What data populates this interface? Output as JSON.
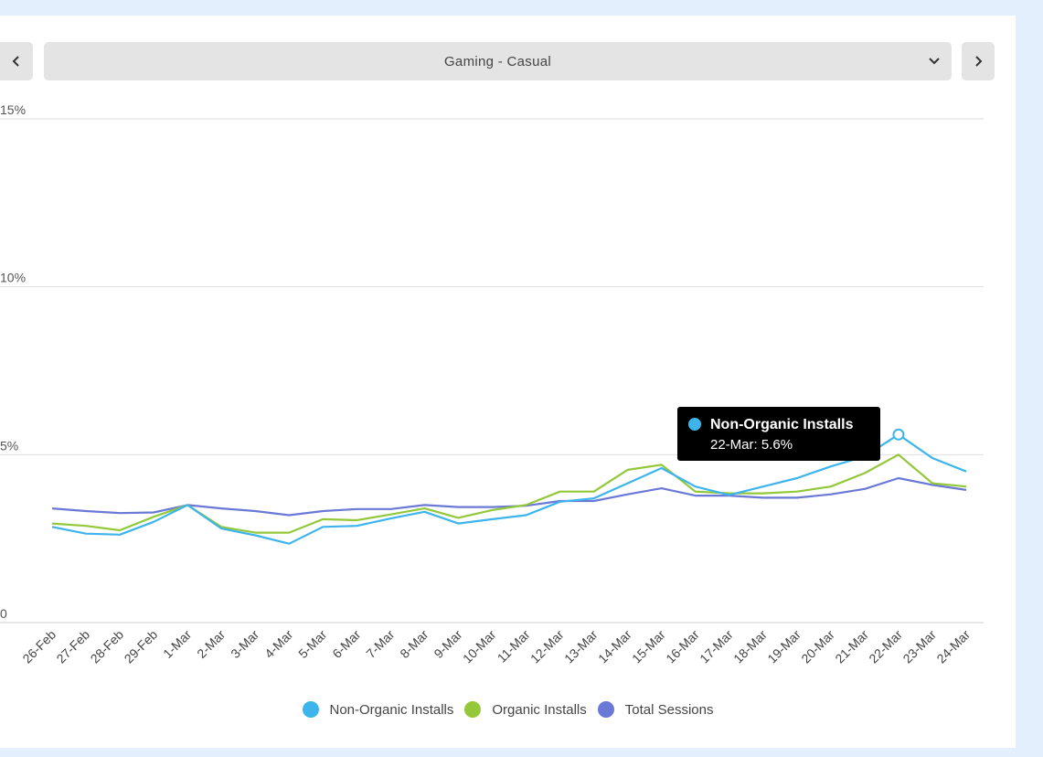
{
  "selector": {
    "label": "Gaming - Casual"
  },
  "colors": {
    "non_organic": "#3db4ec",
    "organic": "#93c83a",
    "sessions": "#6a78d6",
    "grid": "#dedede"
  },
  "chart_data": {
    "type": "line",
    "x": [
      "26-Feb",
      "27-Feb",
      "28-Feb",
      "29-Feb",
      "1-Mar",
      "2-Mar",
      "3-Mar",
      "4-Mar",
      "5-Mar",
      "6-Mar",
      "7-Mar",
      "8-Mar",
      "9-Mar",
      "10-Mar",
      "11-Mar",
      "12-Mar",
      "13-Mar",
      "14-Mar",
      "15-Mar",
      "16-Mar",
      "17-Mar",
      "18-Mar",
      "19-Mar",
      "20-Mar",
      "21-Mar",
      "22-Mar",
      "23-Mar",
      "24-Mar"
    ],
    "y_ticks": [
      0,
      5,
      10,
      15
    ],
    "y_tick_labels": [
      "0",
      "5%",
      "10%",
      "15%"
    ],
    "ylim": [
      0,
      15
    ],
    "grid": true,
    "legend_position": "bottom-center",
    "series": [
      {
        "name": "Non-Organic Installs",
        "color": "#3db4ec",
        "values": [
          2.85,
          2.65,
          2.62,
          3.0,
          3.5,
          2.8,
          2.6,
          2.35,
          2.85,
          2.88,
          3.1,
          3.3,
          2.95,
          3.08,
          3.2,
          3.6,
          3.7,
          4.15,
          4.6,
          4.05,
          3.8,
          4.05,
          4.3,
          4.65,
          4.95,
          5.6,
          4.9,
          4.5
        ]
      },
      {
        "name": "Organic Installs",
        "color": "#93c83a",
        "values": [
          2.95,
          2.88,
          2.75,
          3.15,
          3.5,
          2.85,
          2.68,
          2.68,
          3.08,
          3.05,
          3.22,
          3.4,
          3.12,
          3.35,
          3.5,
          3.9,
          3.9,
          4.55,
          4.7,
          3.9,
          3.85,
          3.85,
          3.9,
          4.05,
          4.45,
          5.0,
          4.15,
          4.05
        ]
      },
      {
        "name": "Total Sessions",
        "color": "#6a78d6",
        "values": [
          3.4,
          3.32,
          3.26,
          3.28,
          3.5,
          3.4,
          3.32,
          3.2,
          3.32,
          3.38,
          3.38,
          3.5,
          3.44,
          3.44,
          3.48,
          3.62,
          3.62,
          3.82,
          4.0,
          3.78,
          3.78,
          3.72,
          3.72,
          3.82,
          3.98,
          4.3,
          4.1,
          3.95
        ]
      }
    ]
  },
  "tooltip": {
    "series": "Non-Organic Installs",
    "text": "22-Mar: 5.6%",
    "point_index": 25
  },
  "legend": [
    {
      "label": "Non-Organic Installs",
      "color": "#3db4ec"
    },
    {
      "label": "Organic Installs",
      "color": "#93c83a"
    },
    {
      "label": "Total Sessions",
      "color": "#6a78d6"
    }
  ]
}
